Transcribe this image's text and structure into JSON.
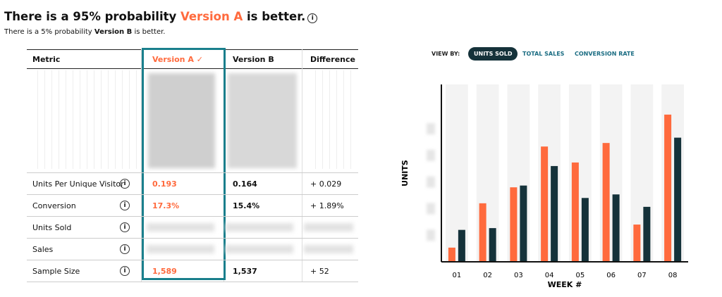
{
  "header": {
    "title_start": "There is a 95% probability ",
    "title_highlight": "Version A",
    "title_end": " is better.",
    "subtitle_start": "There is a 5% probability ",
    "subtitle_bold": "Version B",
    "subtitle_end": " is better."
  },
  "table": {
    "columns": [
      "Metric",
      "Version A",
      "Version B",
      "Difference"
    ],
    "rows": [
      [
        "Units Per Unique Visitor",
        "0.193",
        "0.164",
        "+ 0.029"
      ],
      [
        "Conversion",
        "17.3%",
        "15.4%",
        "+ 1.89%"
      ],
      [
        "Units Sold"
      ],
      [
        "Sales"
      ],
      [
        "Sample Size",
        "1,589",
        "1,537",
        "+ 52"
      ]
    ]
  },
  "controls": {
    "label": "VIEW BY:",
    "options": [
      "UNITS SOLD",
      "TOTAL SALES",
      "CONVERSION RATE"
    ]
  },
  "chart_data": {
    "type": "bar",
    "x_label": "WEEK #",
    "y_label": "UNITS",
    "categories": [
      "01",
      "02",
      "03",
      "04",
      "05",
      "06",
      "07",
      "08"
    ],
    "series": [
      {
        "color": "#ff6a3d",
        "values": [
          8,
          33,
          42,
          65,
          56,
          67,
          21,
          83
        ]
      },
      {
        "color": "#15323a",
        "values": [
          18,
          19,
          43,
          54,
          36,
          38,
          31,
          70
        ]
      }
    ],
    "ylim": [
      0,
      100
    ]
  }
}
